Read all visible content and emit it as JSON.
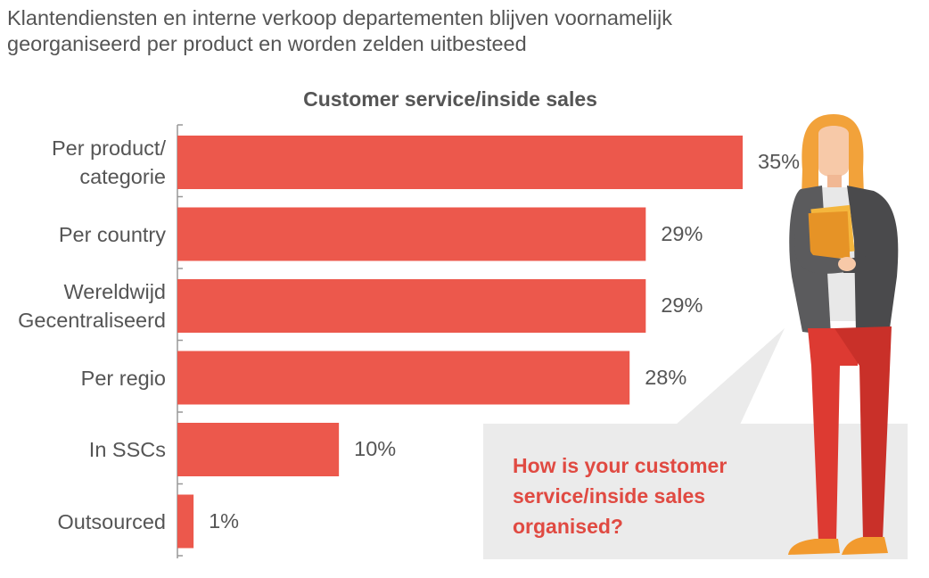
{
  "headline": {
    "line1": "Klantendiensten en interne verkoop departementen blijven voornamelijk",
    "line2": "georganiseerd per product en worden zelden uitbesteed"
  },
  "callout": {
    "line1": "How is your customer",
    "line2": "service/inside sales",
    "line3": "organised?"
  },
  "colors": {
    "bar": "#ec584c",
    "axis": "#999999",
    "callout_text": "#e04a42",
    "callout_bg": "#ebebeb"
  },
  "chart_data": {
    "type": "bar",
    "orientation": "horizontal",
    "title": "Customer service/inside sales",
    "categories": [
      [
        "Per product/",
        "categorie"
      ],
      [
        "Per country"
      ],
      [
        "Wereldwijd",
        "Gecentraliseerd"
      ],
      [
        "Per regio"
      ],
      [
        "In SSCs"
      ],
      [
        "Outsourced"
      ]
    ],
    "values": [
      35,
      29,
      29,
      28,
      10,
      1
    ],
    "value_labels": [
      "35%",
      "29%",
      "29%",
      "28%",
      "10%",
      "1%"
    ],
    "unit": "%",
    "xlim": [
      0,
      35
    ],
    "grid": false,
    "legend": "none"
  }
}
